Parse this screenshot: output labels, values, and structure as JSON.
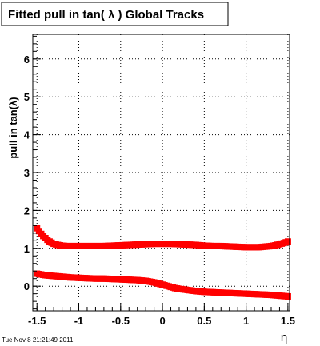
{
  "chart_data": {
    "type": "scatter",
    "title": "Fitted pull in tan( λ )  Global Tracks",
    "xlabel": "η",
    "ylabel": "pull in tan(λ)",
    "xlim": [
      -1.55,
      1.52
    ],
    "ylim": [
      -0.65,
      6.65
    ],
    "grid": true,
    "x_ticks": [
      -1.5,
      -1,
      -0.5,
      0,
      0.5,
      1,
      1.5
    ],
    "x_tick_labels": [
      "-1.5",
      "-1",
      "-0.5",
      "0",
      "0.5",
      "1",
      "1.5"
    ],
    "y_ticks": [
      0,
      1,
      2,
      3,
      4,
      5,
      6
    ],
    "y_tick_labels": [
      "0",
      "1",
      "2",
      "3",
      "4",
      "5",
      "6"
    ],
    "marker_color": "#ff0000",
    "series": [
      {
        "x": [
          -1.5,
          -1.45,
          -1.4,
          -1.35,
          -1.3,
          -1.25,
          -1.2,
          -1.15,
          -1.1,
          -1.05,
          -1.0,
          -0.9,
          -0.8,
          -0.7,
          -0.6,
          -0.5,
          -0.4,
          -0.3,
          -0.2,
          -0.1,
          0.0,
          0.1,
          0.2,
          0.3,
          0.4,
          0.5,
          0.6,
          0.7,
          0.8,
          0.9,
          1.0,
          1.05,
          1.1,
          1.15,
          1.2,
          1.25,
          1.3,
          1.35,
          1.4,
          1.45,
          1.5
        ],
        "values": [
          1.53,
          1.38,
          1.27,
          1.18,
          1.12,
          1.09,
          1.07,
          1.06,
          1.06,
          1.06,
          1.06,
          1.06,
          1.06,
          1.06,
          1.07,
          1.08,
          1.09,
          1.1,
          1.11,
          1.12,
          1.12,
          1.12,
          1.11,
          1.1,
          1.09,
          1.07,
          1.06,
          1.06,
          1.05,
          1.04,
          1.03,
          1.03,
          1.03,
          1.03,
          1.04,
          1.05,
          1.06,
          1.08,
          1.11,
          1.14,
          1.18
        ]
      },
      {
        "x": [
          -1.5,
          -1.45,
          -1.4,
          -1.35,
          -1.3,
          -1.25,
          -1.2,
          -1.15,
          -1.1,
          -1.0,
          -0.9,
          -0.8,
          -0.7,
          -0.6,
          -0.5,
          -0.4,
          -0.3,
          -0.2,
          -0.15,
          -0.1,
          -0.05,
          0.0,
          0.05,
          0.1,
          0.15,
          0.2,
          0.3,
          0.4,
          0.5,
          0.6,
          0.7,
          0.8,
          0.9,
          1.0,
          1.1,
          1.2,
          1.3,
          1.4,
          1.5
        ],
        "values": [
          0.33,
          0.31,
          0.29,
          0.28,
          0.27,
          0.26,
          0.25,
          0.24,
          0.23,
          0.22,
          0.21,
          0.2,
          0.2,
          0.19,
          0.18,
          0.17,
          0.16,
          0.14,
          0.12,
          0.1,
          0.07,
          0.04,
          0.01,
          -0.02,
          -0.05,
          -0.07,
          -0.1,
          -0.13,
          -0.15,
          -0.16,
          -0.17,
          -0.18,
          -0.19,
          -0.2,
          -0.21,
          -0.22,
          -0.23,
          -0.25,
          -0.27
        ]
      }
    ]
  },
  "timestamp": "Tue Nov  8 21:21:49 2011"
}
